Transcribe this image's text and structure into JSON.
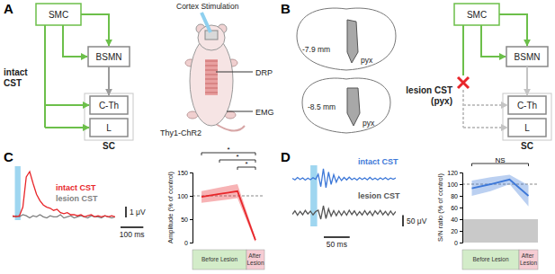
{
  "panels": [
    {
      "label": "A",
      "circuit": {
        "nodes": [
          "SMC",
          "BSMN",
          "C-Th",
          "L"
        ],
        "region": "SC",
        "pathway": [
          "intact",
          "CST"
        ]
      },
      "setup": {
        "stimulation": "Cortex Stimulation",
        "mouse": "Thy1-ChR2",
        "recordings": [
          "DRP",
          "EMG"
        ]
      }
    },
    {
      "label": "B",
      "sections": [
        {
          "level": "-7.9 mm",
          "tract": "pyx"
        },
        {
          "level": "-8.5 mm",
          "tract": "pyx"
        }
      ],
      "circuit": {
        "nodes": [
          "SMC",
          "BSMN",
          "C-Th",
          "L"
        ],
        "region": "SC",
        "pathway": [
          "lesion CST",
          "(pyx)"
        ]
      }
    },
    {
      "label": "C"
    },
    {
      "label": "D"
    }
  ],
  "chart_data": [
    {
      "type": "line",
      "tick_labels": false,
      "x": [
        0,
        15,
        30,
        45,
        60,
        75,
        90,
        105,
        120,
        135,
        150,
        165,
        180,
        195,
        210,
        225,
        240,
        255,
        270,
        285,
        300,
        315,
        330,
        345,
        360,
        375,
        390,
        405,
        420,
        435,
        450
      ],
      "xlim": [
        0,
        450
      ],
      "ylim": [
        0,
        5
      ],
      "stimulus": [
        10,
        35
      ],
      "series": [
        {
          "name": "intact CST",
          "color": "#e8262a",
          "values": [
            0.4,
            0.3,
            0.4,
            1.2,
            4.0,
            4.5,
            3.4,
            2.4,
            1.8,
            1.4,
            1.2,
            1.1,
            0.9,
            1.0,
            0.7,
            0.6,
            0.7,
            0.5,
            0.5,
            0.4,
            0.5,
            0.3,
            0.4,
            0.5,
            0.3,
            0.4,
            0.3,
            0.4,
            0.3,
            0.4,
            0.3
          ]
        },
        {
          "name": "lesion CST",
          "color": "#7f7f7f",
          "values": [
            0.3,
            0.4,
            0.3,
            0.5,
            0.4,
            0.2,
            0.4,
            0.3,
            0.5,
            0.3,
            0.2,
            0.4,
            0.3,
            0.3,
            0.5,
            0.2,
            0.3,
            0.4,
            0.2,
            0.3,
            0.4,
            0.3,
            0.2,
            0.4,
            0.3,
            0.3,
            0.2,
            0.4,
            0.3,
            0.2,
            0.3
          ]
        }
      ],
      "scale_bars": [
        {
          "axis": "y",
          "value": 1,
          "label": "1 μV"
        },
        {
          "axis": "x",
          "value": 100,
          "label": "100 ms"
        }
      ]
    },
    {
      "type": "line",
      "categories": [
        null,
        null,
        null,
        null
      ],
      "ylim": [
        0,
        150
      ],
      "yticks": [
        0,
        50,
        100,
        150
      ],
      "ylabel": "Amplitude (% of control)",
      "reference_line": 100,
      "series": [
        {
          "color": "#e8262a",
          "values": [
            98,
            104,
            110,
            5
          ],
          "lower": [
            85,
            90,
            95,
            1
          ],
          "upper": [
            110,
            118,
            125,
            10
          ]
        }
      ],
      "significance": [
        {
          "from": 0,
          "to": 3,
          "label": "*"
        },
        {
          "from": 1,
          "to": 3,
          "label": "*"
        },
        {
          "from": 2,
          "to": 3,
          "label": "*"
        }
      ],
      "phases": [
        {
          "label": "Before Lesion",
          "from": 0,
          "to": 2,
          "color": "#d3ecc9"
        },
        {
          "label": "After Lesion",
          "from": 3,
          "to": 3,
          "color": "#f6ccd3"
        }
      ]
    },
    {
      "type": "line",
      "tick_labels": false,
      "x": [
        0,
        5,
        10,
        15,
        20,
        25,
        30,
        35,
        40,
        45,
        50,
        55,
        60,
        65,
        70,
        75,
        80,
        85,
        90,
        95,
        100,
        105,
        110,
        115,
        120,
        125,
        130,
        135,
        140,
        145,
        150,
        155,
        160,
        165,
        170,
        175,
        180,
        185,
        190,
        195,
        200
      ],
      "xlim": [
        0,
        200
      ],
      "ylim": [
        -60,
        60
      ],
      "stimulus": [
        35,
        48
      ],
      "series": [
        {
          "name": "intact CST",
          "color": "#3d78d8",
          "values": [
            2,
            -5,
            6,
            -3,
            4,
            -6,
            3,
            -4,
            5,
            -2,
            20,
            -35,
            45,
            -40,
            30,
            -25,
            18,
            -15,
            10,
            -8,
            6,
            -5,
            7,
            -4,
            3,
            -6,
            5,
            -3,
            4,
            -5,
            6,
            -4,
            3,
            -5,
            4,
            -3,
            5,
            -4,
            3,
            -2,
            4
          ]
        },
        {
          "name": "lesion CST",
          "color": "#555555",
          "values": [
            -6,
            9,
            -10,
            7,
            -8,
            11,
            -5,
            8,
            -9,
            6,
            12,
            -28,
            32,
            -25,
            18,
            -14,
            10,
            -12,
            9,
            -11,
            8,
            -10,
            12,
            -7,
            9,
            -11,
            6,
            -9,
            10,
            -8,
            7,
            -12,
            9,
            -6,
            11,
            -8,
            7,
            -10,
            8,
            -9,
            6
          ]
        }
      ],
      "scale_bars": [
        {
          "axis": "x",
          "value": 50,
          "label": "50 ms"
        },
        {
          "axis": "y",
          "value": 50,
          "label": "50 μV"
        }
      ]
    },
    {
      "type": "line",
      "categories": [
        null,
        null,
        null,
        null
      ],
      "ylim": [
        0,
        120
      ],
      "yticks": [
        0,
        20,
        40,
        60,
        80,
        100,
        120
      ],
      "ylabel": "S/N ratio (% of control)",
      "reference_line": 100,
      "noise_floor": [
        0,
        40
      ],
      "series": [
        {
          "color": "#3d78d8",
          "values": [
            93,
            100,
            108,
            80
          ],
          "lower": [
            80,
            88,
            100,
            62
          ],
          "upper": [
            106,
            112,
            116,
            98
          ]
        }
      ],
      "significance": [
        {
          "from": 0,
          "to": 3,
          "label": "NS"
        }
      ],
      "phases": [
        {
          "label": "Before Lesion",
          "from": 0,
          "to": 2,
          "color": "#d3ecc9"
        },
        {
          "label": "After Lesion",
          "from": 3,
          "to": 3,
          "color": "#f6ccd3"
        }
      ]
    }
  ]
}
